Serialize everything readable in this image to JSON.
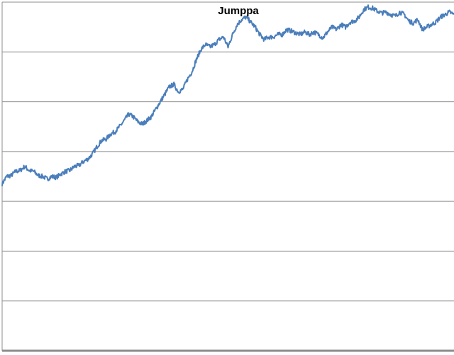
{
  "chart_data": {
    "type": "line",
    "title": "Jumppa",
    "xlabel": "",
    "ylabel": "",
    "ylim": [
      0,
      7
    ],
    "xlim": [
      0,
      100
    ],
    "grid": true,
    "series": [
      {
        "color": "#4a7ebb",
        "x": [
          0,
          1,
          2,
          3,
          4,
          5,
          6,
          7,
          8,
          9,
          10,
          11,
          12,
          13,
          14,
          15,
          16,
          17,
          18,
          19,
          20,
          21,
          22,
          23,
          24,
          25,
          26,
          27,
          28,
          29,
          30,
          31,
          32,
          33,
          34,
          35,
          36,
          37,
          38,
          39,
          40,
          41,
          42,
          43,
          44,
          45,
          46,
          47,
          48,
          49,
          50,
          51,
          52,
          53,
          54,
          55,
          56,
          57,
          58,
          59,
          60,
          61,
          62,
          63,
          64,
          65,
          66,
          67,
          68,
          69,
          70,
          71,
          72,
          73,
          74,
          75,
          76,
          77,
          78,
          79,
          80,
          81,
          82,
          83,
          84,
          85,
          86,
          87,
          88,
          89,
          90,
          91,
          92,
          93,
          94,
          95,
          96,
          97,
          98,
          99,
          100
        ],
        "y": [
          3.35,
          3.5,
          3.52,
          3.6,
          3.62,
          3.7,
          3.62,
          3.6,
          3.52,
          3.5,
          3.45,
          3.5,
          3.48,
          3.55,
          3.6,
          3.62,
          3.7,
          3.72,
          3.8,
          3.85,
          3.95,
          4.1,
          4.22,
          4.25,
          4.35,
          4.4,
          4.5,
          4.62,
          4.75,
          4.7,
          4.6,
          4.55,
          4.62,
          4.7,
          4.85,
          5.0,
          5.15,
          5.3,
          5.35,
          5.2,
          5.25,
          5.45,
          5.6,
          5.85,
          6.05,
          6.15,
          6.1,
          6.15,
          6.25,
          6.3,
          6.1,
          6.35,
          6.55,
          6.65,
          6.7,
          6.6,
          6.5,
          6.35,
          6.25,
          6.3,
          6.3,
          6.35,
          6.35,
          6.45,
          6.42,
          6.38,
          6.35,
          6.4,
          6.35,
          6.4,
          6.35,
          6.28,
          6.4,
          6.5,
          6.45,
          6.55,
          6.5,
          6.6,
          6.62,
          6.7,
          6.85,
          6.9,
          6.88,
          6.82,
          6.78,
          6.8,
          6.75,
          6.72,
          6.8,
          6.75,
          6.62,
          6.58,
          6.65,
          6.45,
          6.5,
          6.55,
          6.6,
          6.7,
          6.75,
          6.8,
          6.75
        ]
      }
    ]
  }
}
